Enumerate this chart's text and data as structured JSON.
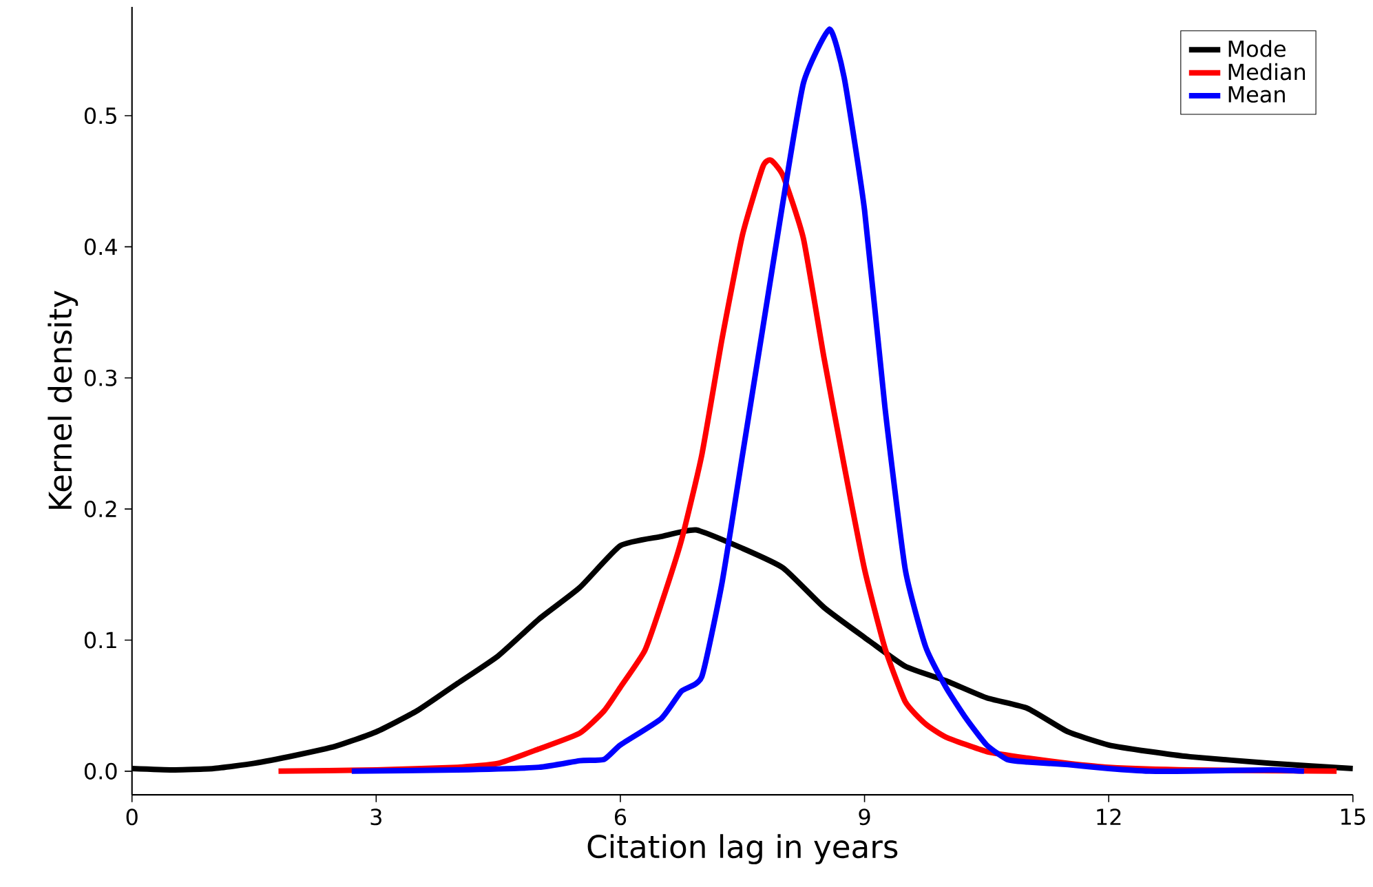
{
  "chart_data": {
    "type": "line",
    "xlabel": "Citation lag in years",
    "ylabel": "Kernel density",
    "xlim": [
      0,
      15
    ],
    "ylim": [
      -0.018,
      0.583
    ],
    "xticks": [
      0,
      3,
      6,
      9,
      12,
      15
    ],
    "yticks": [
      {
        "value": 0,
        "label": "0.0"
      },
      {
        "value": 0.1,
        "label": "0.1"
      },
      {
        "value": 0.2,
        "label": "0.2"
      },
      {
        "value": 0.3,
        "label": "0.3"
      },
      {
        "value": 0.4,
        "label": "0.4"
      },
      {
        "value": 0.5,
        "label": "0.5"
      }
    ],
    "grid": false,
    "legend": "top right",
    "line_style": "solid",
    "marker": "none",
    "series": [
      {
        "name": "Mode",
        "color": "#000000",
        "x": [
          0,
          0.5,
          1,
          1.5,
          2,
          2.5,
          3,
          3.5,
          4,
          4.5,
          5,
          5.5,
          6,
          6.5,
          6.93,
          7.5,
          8,
          8.5,
          9,
          9.5,
          10,
          10.5,
          11,
          11.5,
          12,
          12.5,
          13,
          14,
          15
        ],
        "values": [
          0.002,
          0.001,
          0.002,
          0.006,
          0.012,
          0.019,
          0.03,
          0.046,
          0.067,
          0.088,
          0.116,
          0.14,
          0.172,
          0.179,
          0.184,
          0.17,
          0.155,
          0.125,
          0.102,
          0.08,
          0.069,
          0.056,
          0.048,
          0.03,
          0.02,
          0.015,
          0.011,
          0.006,
          0.002
        ]
      },
      {
        "name": "Median",
        "color": "#ff0000",
        "x": [
          1.8,
          3,
          4,
          4.5,
          5,
          5.5,
          5.8,
          6,
          6.3,
          6.5,
          6.75,
          7,
          7.25,
          7.5,
          7.75,
          7.85,
          8,
          8.25,
          8.5,
          8.75,
          9,
          9.25,
          9.5,
          9.75,
          10,
          10.5,
          11,
          11.5,
          12,
          13,
          14,
          14.8
        ],
        "values": [
          0,
          0.001,
          0.003,
          0.006,
          0.017,
          0.029,
          0.046,
          0.064,
          0.092,
          0.127,
          0.176,
          0.241,
          0.33,
          0.409,
          0.461,
          0.466,
          0.454,
          0.406,
          0.316,
          0.233,
          0.154,
          0.094,
          0.053,
          0.036,
          0.026,
          0.015,
          0.01,
          0.006,
          0.003,
          0.001,
          null,
          0
        ]
      },
      {
        "name": "Mean",
        "color": "#0000ff",
        "x": [
          2.7,
          4,
          5,
          5.5,
          5.8,
          6,
          6.5,
          6.75,
          7,
          7.25,
          7.5,
          7.75,
          8,
          8.25,
          8.57,
          8.75,
          9,
          9.25,
          9.5,
          9.75,
          10,
          10.25,
          10.5,
          10.75,
          11,
          11.5,
          12,
          12.5,
          13,
          14,
          14.4
        ],
        "values": [
          0,
          0.001,
          0.003,
          0.008,
          0.009,
          0.02,
          0.04,
          0.061,
          0.072,
          0.144,
          0.241,
          0.338,
          0.435,
          0.525,
          0.566,
          0.529,
          0.428,
          0.278,
          0.154,
          0.095,
          0.064,
          0.04,
          0.02,
          0.009,
          0.007,
          0.005,
          0.002,
          0,
          0,
          0.001,
          0
        ]
      }
    ]
  }
}
